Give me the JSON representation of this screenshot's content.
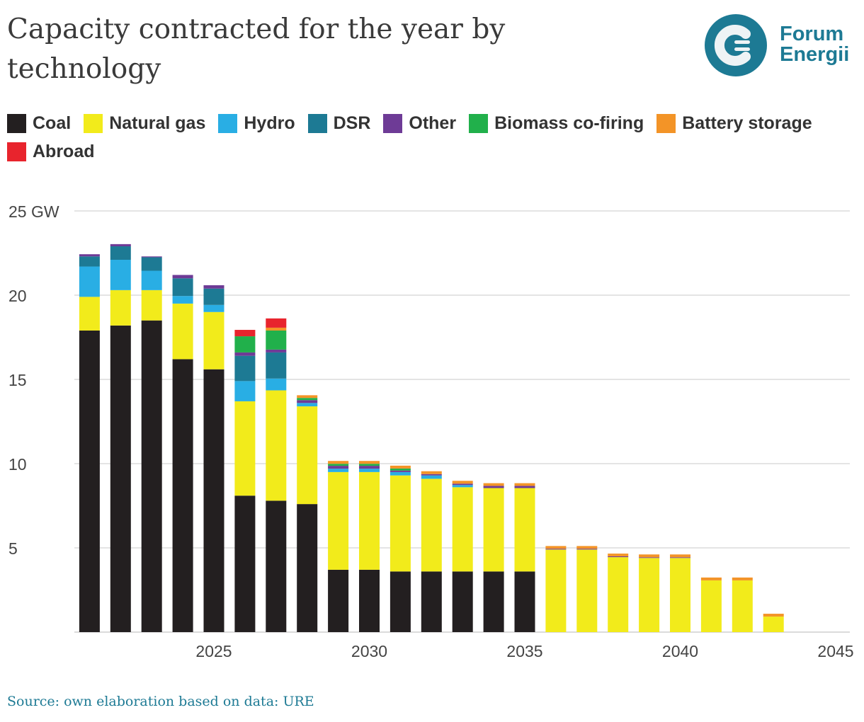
{
  "title": "Capacity contracted for the year by technology",
  "logo": {
    "line1": "Forum",
    "line2": "Energii"
  },
  "source": "Source: own elaboration based on data: URE",
  "chart_data": {
    "type": "bar",
    "stacked": true,
    "title": "Capacity contracted for the year by technology",
    "xlabel": "",
    "ylabel": "GW",
    "ylim": [
      0,
      25
    ],
    "xlim": [
      2020.5,
      2045
    ],
    "yticks": [
      {
        "v": 25,
        "label": "25 GW"
      },
      {
        "v": 20,
        "label": "20"
      },
      {
        "v": 15,
        "label": "15"
      },
      {
        "v": 10,
        "label": "10"
      },
      {
        "v": 5,
        "label": "5"
      }
    ],
    "xticks": [
      {
        "v": 2025,
        "label": "2025"
      },
      {
        "v": 2030,
        "label": "2030"
      },
      {
        "v": 2035,
        "label": "2035"
      },
      {
        "v": 2040,
        "label": "2040"
      },
      {
        "v": 2045,
        "label": "2045"
      }
    ],
    "grid": true,
    "legend_position": "top-left",
    "categories": [
      2021,
      2022,
      2023,
      2024,
      2025,
      2026,
      2027,
      2028,
      2029,
      2030,
      2031,
      2032,
      2033,
      2034,
      2035,
      2036,
      2037,
      2038,
      2039,
      2040,
      2041,
      2042,
      2043
    ],
    "series": [
      {
        "name": "Coal",
        "color": "#231f20",
        "values": [
          17.9,
          18.2,
          18.5,
          16.2,
          15.6,
          8.1,
          7.8,
          7.6,
          3.7,
          3.7,
          3.6,
          3.6,
          3.6,
          3.6,
          3.6,
          0,
          0,
          0,
          0,
          0,
          0,
          0,
          0
        ]
      },
      {
        "name": "Natural gas",
        "color": "#f2eb1b",
        "values": [
          2.0,
          2.1,
          1.8,
          3.3,
          3.4,
          5.6,
          6.55,
          5.8,
          5.8,
          5.8,
          5.7,
          5.5,
          5.0,
          4.95,
          4.95,
          4.9,
          4.9,
          4.45,
          4.4,
          4.4,
          3.07,
          3.07,
          0.92
        ]
      },
      {
        "name": "Hydro",
        "color": "#29aee4",
        "values": [
          1.8,
          1.8,
          1.15,
          0.45,
          0.42,
          1.2,
          0.7,
          0.2,
          0.2,
          0.2,
          0.2,
          0.2,
          0.13,
          0,
          0,
          0,
          0,
          0,
          0,
          0,
          0,
          0,
          0
        ]
      },
      {
        "name": "DSR",
        "color": "#1d7a94",
        "values": [
          0.6,
          0.8,
          0.8,
          1.05,
          0.97,
          1.5,
          1.55,
          0,
          0,
          0,
          0,
          0,
          0,
          0,
          0,
          0,
          0,
          0,
          0,
          0,
          0,
          0,
          0
        ]
      },
      {
        "name": "Other",
        "color": "#6e3b96",
        "values": [
          0.13,
          0.13,
          0.05,
          0.2,
          0.2,
          0.2,
          0.17,
          0.17,
          0.17,
          0.17,
          0.09,
          0.08,
          0.08,
          0.13,
          0.13,
          0.05,
          0.05,
          0.05,
          0.04,
          0.04,
          0,
          0,
          0
        ]
      },
      {
        "name": "Biomass co-firing",
        "color": "#21b04b",
        "values": [
          0,
          0,
          0,
          0,
          0,
          0.96,
          1.13,
          0.13,
          0.12,
          0.12,
          0.12,
          0,
          0,
          0,
          0,
          0,
          0,
          0,
          0,
          0,
          0,
          0,
          0
        ]
      },
      {
        "name": "Battery storage",
        "color": "#f39427",
        "values": [
          0,
          0,
          0,
          0,
          0,
          0,
          0.17,
          0.16,
          0.17,
          0.17,
          0.17,
          0.17,
          0.17,
          0.16,
          0.16,
          0.16,
          0.16,
          0.16,
          0.17,
          0.17,
          0.17,
          0.17,
          0.17
        ]
      },
      {
        "name": "Abroad",
        "color": "#e8242d",
        "values": [
          0,
          0,
          0,
          0,
          0,
          0.38,
          0.55,
          0,
          0,
          0,
          0,
          0,
          0,
          0,
          0,
          0,
          0,
          0,
          0,
          0,
          0,
          0,
          0
        ]
      }
    ]
  }
}
